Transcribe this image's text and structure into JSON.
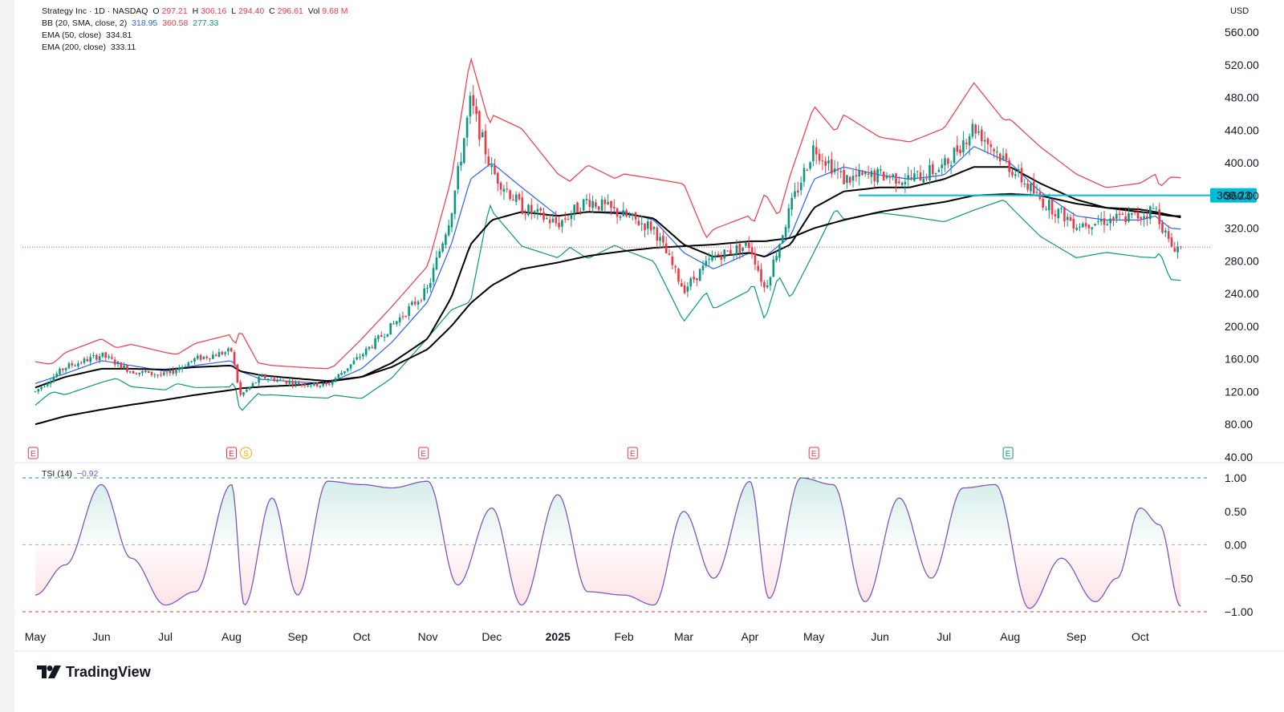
{
  "header": {
    "title": "Strategy Inc · 1D · NASDAQ",
    "o_label": "O",
    "o": "297.21",
    "h_label": "H",
    "h": "306.16",
    "l_label": "L",
    "l": "294.40",
    "c_label": "C",
    "c": "296.61",
    "vol_label": "Vol",
    "vol": "9.68 M"
  },
  "indicators": {
    "bb_label": "BB (20, SMA, close, 2)",
    "bb_basis": "318.95",
    "bb_upper": "360.58",
    "bb_lower": "277.33",
    "ema50_label": "EMA (50, close)",
    "ema50": "334.81",
    "ema200_label": "EMA (200, close)",
    "ema200": "333.11",
    "tsi_label": "TSI (14)",
    "tsi": "−0.92"
  },
  "currency": "USD",
  "price_axis": [
    "560.00",
    "520.00",
    "480.00",
    "440.00",
    "400.00",
    "360.00",
    "320.00",
    "280.00",
    "240.00",
    "200.00",
    "160.00",
    "120.00",
    "80.00",
    "40.00"
  ],
  "tsi_axis": [
    "1.00",
    "0.50",
    "0.00",
    "−0.50",
    "−1.00"
  ],
  "time_axis": [
    "May",
    "Jun",
    "Jul",
    "Aug",
    "Sep",
    "Oct",
    "Nov",
    "Dec",
    "2025",
    "Feb",
    "Mar",
    "Apr",
    "May",
    "Jun",
    "Jul",
    "Aug",
    "Sep",
    "Oct"
  ],
  "earnings_marker": "E",
  "split_marker": "S",
  "resistance_label": "360.23",
  "brand": "TradingView",
  "colors": {
    "up": "#089981",
    "down": "#f23645",
    "bb_upper": "#f23645",
    "bb_basis": "#2962ff",
    "bb_lower": "#089981",
    "ema": "#000000",
    "resistance": "#00bcd4",
    "tsi": "#7e57c2"
  },
  "chart_data": [
    {
      "type": "line",
      "title": "Strategy Inc · 1D · NASDAQ",
      "ylim": [
        40,
        560
      ],
      "x": [
        "2024-05-01",
        "2024-05-15",
        "2024-06-01",
        "2024-06-15",
        "2024-07-01",
        "2024-07-15",
        "2024-08-01",
        "2024-08-05",
        "2024-08-15",
        "2024-09-01",
        "2024-09-15",
        "2024-10-01",
        "2024-10-15",
        "2024-11-01",
        "2024-11-12",
        "2024-11-21",
        "2024-12-01",
        "2024-12-15",
        "2025-01-01",
        "2025-01-15",
        "2025-02-01",
        "2025-02-15",
        "2025-03-01",
        "2025-03-15",
        "2025-04-01",
        "2025-04-08",
        "2025-04-20",
        "2025-05-01",
        "2025-05-15",
        "2025-06-01",
        "2025-06-15",
        "2025-07-01",
        "2025-07-15",
        "2025-08-01",
        "2025-08-15",
        "2025-09-01",
        "2025-09-15",
        "2025-10-01",
        "2025-10-08",
        "2025-10-15",
        "2025-10-20"
      ],
      "series": [
        {
          "name": "close",
          "values": [
            120,
            150,
            165,
            145,
            140,
            160,
            170,
            115,
            138,
            130,
            128,
            165,
            200,
            245,
            340,
            475,
            390,
            345,
            325,
            355,
            335,
            320,
            245,
            285,
            300,
            245,
            345,
            420,
            380,
            385,
            380,
            395,
            445,
            395,
            355,
            325,
            330,
            335,
            345,
            298,
            296.61
          ]
        },
        {
          "name": "BB (20, SMA, close, 2)",
          "values": [
            130,
            142,
            158,
            152,
            145,
            152,
            158,
            145,
            135,
            132,
            130,
            148,
            180,
            230,
            300,
            380,
            400,
            370,
            335,
            340,
            340,
            330,
            290,
            270,
            290,
            285,
            310,
            380,
            395,
            385,
            380,
            385,
            420,
            400,
            365,
            335,
            330,
            330,
            335,
            320,
            318.95
          ]
        },
        {
          "name": "EMA (50, close)",
          "values": [
            125,
            138,
            148,
            148,
            147,
            150,
            152,
            145,
            140,
            136,
            133,
            138,
            155,
            185,
            235,
            300,
            330,
            340,
            335,
            340,
            338,
            332,
            300,
            285,
            290,
            285,
            300,
            345,
            365,
            370,
            370,
            380,
            395,
            395,
            375,
            355,
            345,
            340,
            338,
            335,
            334.81
          ]
        },
        {
          "name": "EMA (200, close)",
          "values": [
            80,
            90,
            98,
            104,
            110,
            116,
            122,
            124,
            126,
            128,
            132,
            138,
            150,
            172,
            200,
            228,
            250,
            270,
            278,
            286,
            292,
            296,
            298,
            300,
            304,
            304,
            308,
            320,
            330,
            340,
            346,
            352,
            360,
            362,
            360,
            350,
            345,
            343,
            340,
            336,
            333.11
          ]
        }
      ]
    },
    {
      "type": "line",
      "title": "TSI (14)",
      "ylim": [
        -1,
        1
      ],
      "x": [
        "2024-05-01",
        "2024-05-15",
        "2024-06-01",
        "2024-06-15",
        "2024-07-01",
        "2024-07-15",
        "2024-08-01",
        "2024-08-07",
        "2024-08-20",
        "2024-09-01",
        "2024-09-15",
        "2024-10-01",
        "2024-10-15",
        "2024-11-01",
        "2024-11-15",
        "2024-12-01",
        "2024-12-15",
        "2025-01-01",
        "2025-01-15",
        "2025-02-01",
        "2025-02-15",
        "2025-03-01",
        "2025-03-15",
        "2025-04-01",
        "2025-04-10",
        "2025-04-25",
        "2025-05-10",
        "2025-05-25",
        "2025-06-10",
        "2025-06-25",
        "2025-07-10",
        "2025-07-25",
        "2025-08-10",
        "2025-08-25",
        "2025-09-10",
        "2025-09-20",
        "2025-10-01",
        "2025-10-10",
        "2025-10-20"
      ],
      "series": [
        {
          "name": "TSI (14)",
          "values": [
            -0.75,
            -0.3,
            0.9,
            -0.2,
            -0.9,
            -0.7,
            0.9,
            -0.9,
            0.7,
            -0.75,
            0.95,
            0.9,
            0.85,
            0.95,
            -0.6,
            0.55,
            -0.9,
            0.75,
            -0.7,
            -0.75,
            -0.9,
            0.5,
            -0.5,
            0.95,
            -0.8,
            1.0,
            0.9,
            -0.85,
            0.7,
            -0.5,
            0.85,
            0.9,
            -0.95,
            -0.2,
            -0.85,
            -0.5,
            0.55,
            0.3,
            -0.92
          ]
        }
      ]
    }
  ]
}
